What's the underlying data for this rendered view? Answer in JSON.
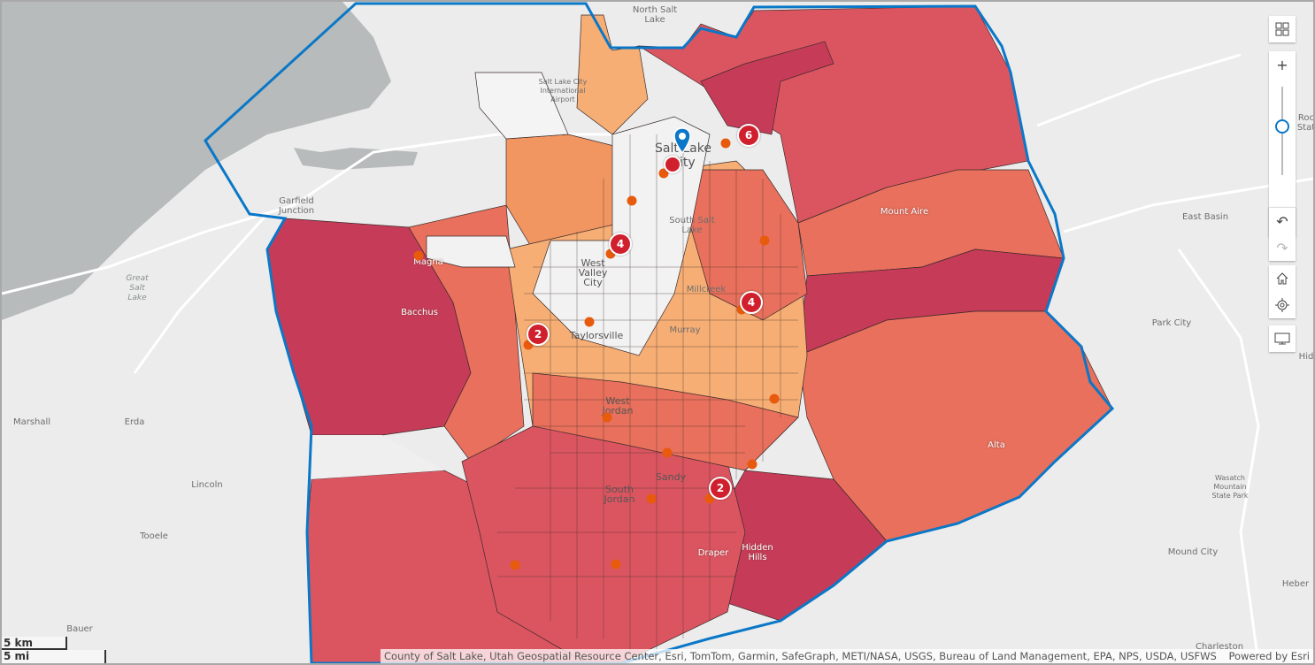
{
  "map": {
    "colors": {
      "boundary": "#0a77c7",
      "class_darkest": "#c63c58",
      "class_dark": "#db5560",
      "class_mid": "#e8705c",
      "class_light": "#f19561",
      "class_lightest": "#f6ae74",
      "no_data": "#efefef",
      "water": "#b7bbbb",
      "cluster": "#d0202e",
      "point": "#e85a0c"
    },
    "place_labels": {
      "north_salt_lake": "North Salt\nLake",
      "airport": "Salt Lake City\nInternational\nAirport",
      "salt_lake_city": "Salt Lake\nCity",
      "garfield_junction": "Garfield\nJunction",
      "great_salt_lake": "Great\nSalt\nLake",
      "magna": "Magna",
      "bacchus": "Bacchus",
      "west_valley_city": "West\nValley\nCity",
      "south_salt_lake": "South Salt\nLake",
      "millcreek": "Millcreek",
      "murray": "Murray",
      "taylorsville": "Taylorsville",
      "west_jordan": "West\nJordan",
      "sandy": "Sandy",
      "south_jordan": "South\nJordan",
      "draper": "Draper",
      "hidden_hills": "Hidden\nHills",
      "mount_aire": "Mount Aire",
      "alta": "Alta",
      "east_basin": "East Basin",
      "park_city": "Park City",
      "marshall": "Marshall",
      "erda": "Erda",
      "lincoln": "Lincoln",
      "tooele": "Tooele",
      "bauer": "Bauer",
      "wasatch": "Wasatch\nMountain\nState Park",
      "mound_city": "Mound City",
      "heber": "Heber",
      "charleston": "Charleston",
      "rock_state": "Roc\nStat",
      "hid": "Hid"
    },
    "clusters": [
      {
        "id": "c6",
        "count": "6"
      },
      {
        "id": "c4a",
        "count": "4"
      },
      {
        "id": "c4b",
        "count": "4"
      },
      {
        "id": "c2a",
        "count": "2"
      },
      {
        "id": "c2b",
        "count": "2"
      },
      {
        "id": "c1",
        "count": ""
      }
    ],
    "scale_bar": {
      "metric": "5 km",
      "imperial": "5 mi"
    },
    "attribution": "County of Salt Lake, Utah Geospatial Resource Center, Esri, TomTom, Garmin, SafeGraph, METI/NASA, USGS, Bureau of Land Management, EPA, NPS, USDA, USFWS",
    "powered_by": "Powered by Esri"
  },
  "controls": {
    "basemap_gallery": "basemap-gallery-icon",
    "zoom_in": "+",
    "zoom_out": "−",
    "zoom_level": 0.5,
    "undo": "↶",
    "redo": "↷",
    "home": "home-icon",
    "locate": "locate-icon",
    "fullscreen": "monitor-icon"
  }
}
